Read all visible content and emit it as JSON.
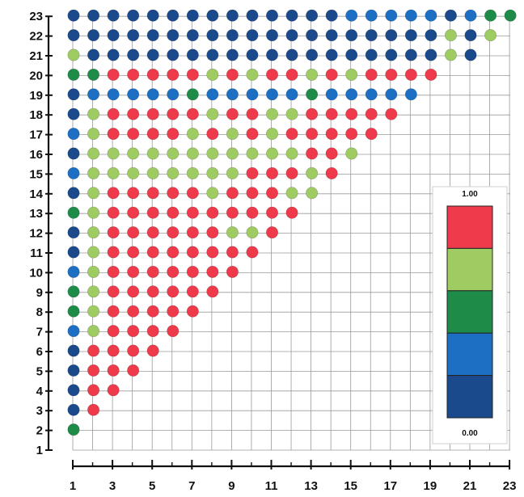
{
  "chart_data": {
    "type": "scatter",
    "title": "",
    "xlabel": "",
    "ylabel": "",
    "xlim": [
      1,
      23
    ],
    "ylim": [
      1,
      23
    ],
    "x_tick_labels": [
      "1",
      "3",
      "5",
      "7",
      "9",
      "11",
      "13",
      "15",
      "17",
      "19",
      "21",
      "23"
    ],
    "y_tick_labels": [
      "1",
      "2",
      "3",
      "4",
      "5",
      "6",
      "7",
      "8",
      "9",
      "10",
      "11",
      "12",
      "13",
      "14",
      "15",
      "16",
      "17",
      "18",
      "19",
      "20",
      "21",
      "22",
      "23"
    ],
    "grid": true,
    "legend": {
      "placement": "right",
      "type": "colorbar",
      "max_label": "1.00",
      "min_label": "0.00",
      "bands": [
        "#ee3a4a",
        "#9fcc62",
        "#1e8c48",
        "#1d6fc4",
        "#1b4a8c"
      ]
    },
    "color_classes": {
      "r": "#ee3a4a",
      "l": "#9fcc62",
      "g": "#1e8c48",
      "b": "#1d6fc4",
      "d": "#1b4a8c"
    },
    "rows": [
      {
        "y": 2,
        "colors": "g"
      },
      {
        "y": 3,
        "colors": "dr"
      },
      {
        "y": 4,
        "colors": "drr"
      },
      {
        "y": 5,
        "colors": "drrr"
      },
      {
        "y": 6,
        "colors": "drrrr"
      },
      {
        "y": 7,
        "colors": "blrrrr"
      },
      {
        "y": 8,
        "colors": "glrrrrr"
      },
      {
        "y": 9,
        "colors": "glrrrrrr"
      },
      {
        "y": 10,
        "colors": "blrrrrrrr"
      },
      {
        "y": 11,
        "colors": "dlrrrrrrrr"
      },
      {
        "y": 12,
        "colors": "dlrrrrrrllr"
      },
      {
        "y": 13,
        "colors": "glrrrrrrrrrr"
      },
      {
        "y": 14,
        "colors": "dlrrrrrlrrrll"
      },
      {
        "y": 15,
        "colors": "bllllllllrrrlr"
      },
      {
        "y": 16,
        "colors": "dlllllllllllrrl"
      },
      {
        "y": 17,
        "colors": "blrrrrlrlrlrrrrr"
      },
      {
        "y": 18,
        "colors": "dlrrrrrlrrllrrrrr"
      },
      {
        "y": 19,
        "colors": "dbbbbbgbbbbbgbbbbb"
      },
      {
        "y": 20,
        "colors": "ggrrrrrlrlrrlrlrrrr"
      },
      {
        "y": 21,
        "colors": "lddddddddddddddddddld"
      },
      {
        "y": 22,
        "colors": "dddddddddddddddddddldl"
      },
      {
        "y": 23,
        "colors": "ddddddddddddddbbbbbdbggg"
      }
    ]
  }
}
